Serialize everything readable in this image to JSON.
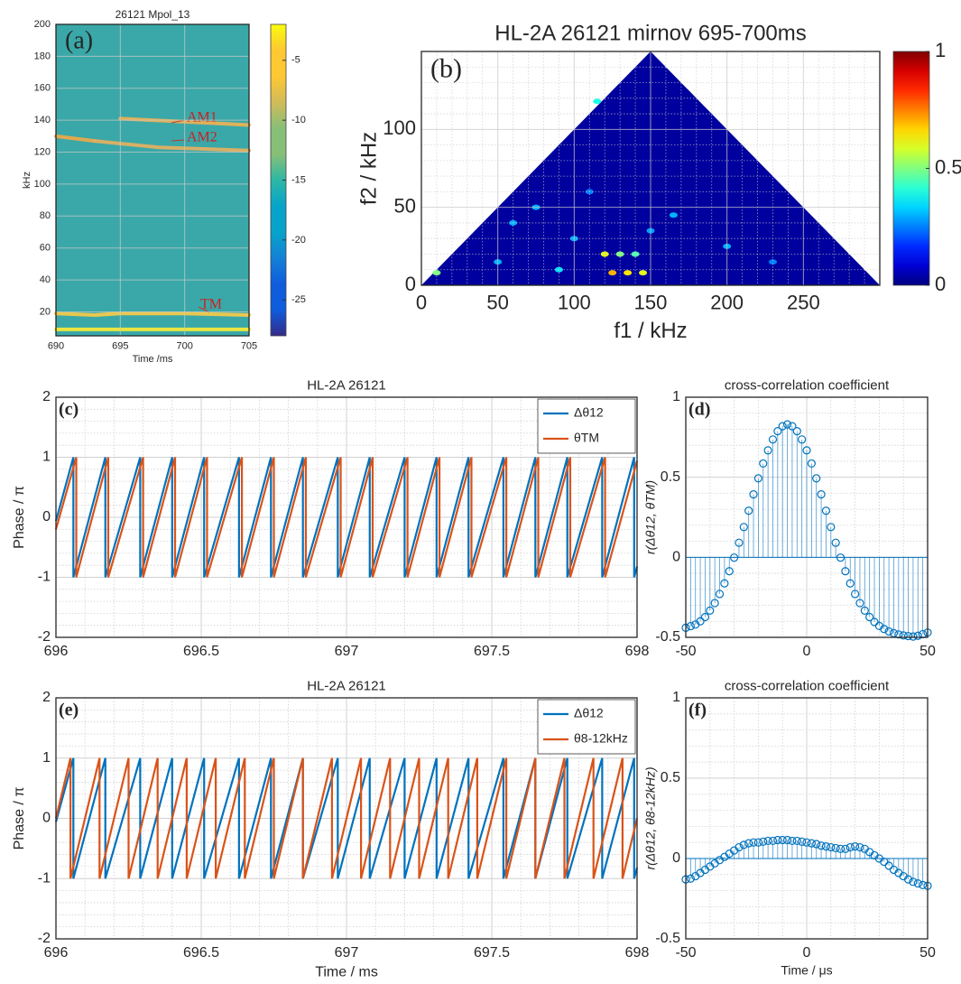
{
  "chart_data": [
    {
      "type": "spectrogram",
      "title": "26121 Mpol_13",
      "panel_label": "(a)",
      "xlabel": "Time /ms",
      "ylabel": "kHz",
      "xlim": [
        690,
        705
      ],
      "xticks": [
        690,
        695,
        700,
        705
      ],
      "ylim": [
        5,
        200
      ],
      "yticks": [
        20,
        40,
        60,
        80,
        100,
        120,
        140,
        160,
        180,
        200
      ],
      "grid": true,
      "background": "#3aa8a8",
      "series": [
        {
          "x": [
            690,
            705
          ],
          "values": [
            9,
            9
          ],
          "color": "#f4e83a"
        },
        {
          "x": [
            690,
            693,
            695,
            700,
            705
          ],
          "values": [
            19,
            18,
            19,
            19,
            18
          ],
          "color": "#f2c94a"
        },
        {
          "x": [
            690,
            693
          ],
          "values": [
            130,
            127
          ],
          "color": "#e9a94a"
        },
        {
          "x": [
            695,
            700,
            705
          ],
          "values": [
            141,
            139,
            137
          ],
          "color": "#e8b155"
        },
        {
          "x": [
            693,
            698,
            705
          ],
          "values": [
            127,
            123,
            121
          ],
          "color": "#dfb062"
        }
      ],
      "annotations": [
        "AM1",
        "AM2",
        "TM"
      ],
      "colorbar": {
        "lim": [
          -28,
          -2
        ],
        "ticks": [
          -25,
          -20,
          -15,
          -10,
          -5
        ],
        "colormap": "parula"
      }
    },
    {
      "type": "bicoherence",
      "title": "HL-2A 26121 mirnov 695-700ms",
      "panel_label": "(b)",
      "xlabel": "f1 / kHz",
      "ylabel": "f2 / kHz",
      "xlim": [
        0,
        300
      ],
      "xticks": [
        0,
        50,
        100,
        150,
        200,
        250
      ],
      "ylim": [
        0,
        150
      ],
      "yticks": [
        0,
        50,
        100
      ],
      "grid": true,
      "minor_grid": 5,
      "x": [
        10,
        120,
        125,
        135,
        145,
        130,
        140,
        115,
        60,
        75,
        100,
        165,
        200,
        50,
        90,
        230,
        110,
        150
      ],
      "y": [
        8,
        20,
        8,
        8,
        8,
        20,
        20,
        118,
        40,
        50,
        30,
        45,
        25,
        15,
        10,
        15,
        60,
        35
      ],
      "values": [
        0.5,
        0.6,
        0.7,
        0.65,
        0.6,
        0.5,
        0.45,
        0.4,
        0.3,
        0.3,
        0.3,
        0.3,
        0.3,
        0.3,
        0.35,
        0.25,
        0.25,
        0.28
      ],
      "colorbar": {
        "lim": [
          0,
          1
        ],
        "ticks": [
          0,
          0.5,
          1
        ],
        "colormap": "jet"
      }
    },
    {
      "type": "line",
      "title": "HL-2A 26121",
      "panel_label": "(c)",
      "ylabel": "Phase / π",
      "xlim": [
        696,
        698
      ],
      "xticks": [
        696,
        696.5,
        697,
        697.5,
        698
      ],
      "ylim": [
        -2,
        2
      ],
      "yticks": [
        -2,
        -1,
        0,
        1,
        2
      ],
      "grid": true,
      "minor_grid": 5,
      "legend": "upper right",
      "series": [
        {
          "name": "Δθ12",
          "color": "#0072bd",
          "x": [
            696,
            696.06,
            696.06,
            696.17,
            696.17,
            696.29,
            696.29,
            696.4,
            696.4,
            696.51,
            696.51,
            696.63,
            696.63,
            696.74,
            696.74,
            696.85,
            696.85,
            696.97,
            696.97,
            697.08,
            697.08,
            697.2,
            697.2,
            697.31,
            697.31,
            697.42,
            697.42,
            697.54,
            697.54,
            697.65,
            697.65,
            697.76,
            697.76,
            697.88,
            697.88,
            697.99,
            697.99,
            698
          ],
          "values": [
            -0.06,
            1,
            -1,
            1,
            -1,
            1,
            -1,
            1,
            -1,
            1,
            -1,
            1,
            -1,
            1,
            -1,
            1,
            -1,
            1,
            -1,
            1,
            -1,
            1,
            -1,
            1,
            -1,
            1,
            -1,
            1,
            -1,
            1,
            -1,
            1,
            -1,
            1,
            -1,
            1,
            -1,
            -0.82
          ]
        },
        {
          "name": "θTM",
          "color": "#d95319",
          "x": [
            696,
            696.07,
            696.07,
            696.18,
            696.18,
            696.3,
            696.3,
            696.41,
            696.41,
            696.52,
            696.52,
            696.64,
            696.64,
            696.75,
            696.75,
            696.86,
            696.86,
            696.98,
            696.98,
            697.09,
            697.09,
            697.21,
            697.21,
            697.32,
            697.32,
            697.43,
            697.43,
            697.55,
            697.55,
            697.66,
            697.66,
            697.77,
            697.77,
            697.89,
            697.89,
            698
          ],
          "values": [
            -0.2,
            1,
            -1,
            1,
            -1,
            1,
            -1,
            1,
            -1,
            1,
            -1,
            1,
            -1,
            1,
            -1,
            1,
            -1,
            1,
            -1,
            1,
            -1,
            1,
            -1,
            1,
            -1,
            1,
            -1,
            1,
            -1,
            1,
            -1,
            1,
            -1,
            1,
            -1,
            0.94
          ]
        }
      ]
    },
    {
      "type": "stem",
      "title": "cross-correlation coefficient",
      "panel_label": "(d)",
      "ylabel": "r(Δθ12, θTM)",
      "xlim": [
        -50,
        50
      ],
      "xticks": [
        -50,
        0,
        50
      ],
      "ylim": [
        -0.5,
        1
      ],
      "yticks": [
        -0.5,
        0,
        0.5,
        1
      ],
      "grid": true,
      "minor_grid": 5,
      "color": "#0072bd",
      "x": [
        -50,
        -48,
        -46,
        -44,
        -42,
        -40,
        -38,
        -36,
        -34,
        -32,
        -30,
        -28,
        -26,
        -24,
        -22,
        -20,
        -18,
        -16,
        -14,
        -12,
        -10,
        -8,
        -6,
        -4,
        -2,
        0,
        2,
        4,
        6,
        8,
        10,
        12,
        14,
        16,
        18,
        20,
        22,
        24,
        26,
        28,
        30,
        32,
        34,
        36,
        38,
        40,
        42,
        44,
        46,
        48,
        50
      ],
      "values": [
        -0.44,
        -0.43,
        -0.42,
        -0.4,
        -0.373,
        -0.333,
        -0.286,
        -0.229,
        -0.163,
        -0.087,
        -0.002,
        0.091,
        0.189,
        0.291,
        0.393,
        0.493,
        0.586,
        0.668,
        0.736,
        0.788,
        0.819,
        0.83,
        0.819,
        0.788,
        0.736,
        0.668,
        0.586,
        0.493,
        0.393,
        0.291,
        0.189,
        0.091,
        -0.002,
        -0.087,
        -0.163,
        -0.229,
        -0.286,
        -0.333,
        -0.373,
        -0.404,
        -0.429,
        -0.448,
        -0.463,
        -0.474,
        -0.482,
        -0.488,
        -0.492,
        -0.495,
        -0.49,
        -0.48,
        -0.47
      ]
    },
    {
      "type": "line",
      "title": "HL-2A 26121",
      "panel_label": "(e)",
      "xlabel": "Time / ms",
      "ylabel": "Phase / π",
      "xlim": [
        696,
        698
      ],
      "xticks": [
        696,
        696.5,
        697,
        697.5,
        698
      ],
      "ylim": [
        -2,
        2
      ],
      "yticks": [
        -2,
        -1,
        0,
        1,
        2
      ],
      "grid": true,
      "minor_grid": 5,
      "legend": "upper right",
      "series": [
        {
          "name": "Δθ12",
          "color": "#0072bd",
          "x": [
            696,
            696.06,
            696.06,
            696.17,
            696.17,
            696.29,
            696.29,
            696.4,
            696.4,
            696.51,
            696.51,
            696.63,
            696.63,
            696.74,
            696.74,
            696.85,
            696.85,
            696.97,
            696.97,
            697.08,
            697.08,
            697.2,
            697.2,
            697.31,
            697.31,
            697.42,
            697.42,
            697.54,
            697.54,
            697.65,
            697.65,
            697.76,
            697.76,
            697.88,
            697.88,
            697.99,
            697.99,
            698
          ],
          "values": [
            -0.06,
            1,
            -1,
            1,
            -1,
            1,
            -1,
            1,
            -1,
            1,
            -1,
            1,
            -1,
            1,
            -1,
            1,
            -1,
            1,
            -1,
            1,
            -1,
            1,
            -1,
            1,
            -1,
            1,
            -1,
            1,
            -1,
            1,
            -1,
            1,
            -1,
            1,
            -1,
            1,
            -1,
            -0.82
          ]
        },
        {
          "name": "θ8-12kHz",
          "color": "#d95319",
          "x": [
            696,
            696.05,
            696.05,
            696.15,
            696.15,
            696.25,
            696.25,
            696.35,
            696.35,
            696.45,
            696.45,
            696.55,
            696.55,
            696.65,
            696.65,
            696.75,
            696.75,
            696.85,
            696.85,
            696.95,
            696.95,
            697.05,
            697.05,
            697.15,
            697.15,
            697.25,
            697.25,
            697.35,
            697.35,
            697.45,
            697.45,
            697.55,
            697.55,
            697.65,
            697.65,
            697.75,
            697.75,
            697.85,
            697.85,
            697.95,
            697.95,
            698
          ],
          "values": [
            0,
            1,
            -1,
            1,
            -1,
            1,
            -1,
            1,
            -1,
            1,
            -1,
            1,
            -1,
            1,
            -1,
            1,
            -1,
            1,
            -1,
            1,
            -1,
            1,
            -1,
            1,
            -1,
            1,
            -1,
            1,
            -1,
            1,
            -1,
            1,
            -1,
            1,
            -1,
            1,
            -1,
            1,
            -1,
            1,
            -1,
            0
          ]
        }
      ]
    },
    {
      "type": "stem",
      "title": "cross-correlation coefficient",
      "panel_label": "(f)",
      "xlabel": "Time / μs",
      "ylabel": "r(Δθ12, θ8-12kHz)",
      "xlim": [
        -50,
        50
      ],
      "xticks": [
        -50,
        0,
        50
      ],
      "ylim": [
        -0.5,
        1
      ],
      "yticks": [
        -0.5,
        0,
        0.5,
        1
      ],
      "grid": true,
      "minor_grid": 5,
      "color": "#0072bd",
      "x": [
        -50,
        -48,
        -46,
        -44,
        -42,
        -40,
        -38,
        -36,
        -34,
        -32,
        -30,
        -28,
        -26,
        -24,
        -22,
        -20,
        -18,
        -16,
        -14,
        -12,
        -10,
        -8,
        -6,
        -4,
        -2,
        0,
        2,
        4,
        6,
        8,
        10,
        12,
        14,
        16,
        18,
        20,
        22,
        24,
        26,
        28,
        30,
        32,
        34,
        36,
        38,
        40,
        42,
        44,
        46,
        48,
        50
      ],
      "values": [
        -0.13,
        -0.125,
        -0.11,
        -0.09,
        -0.07,
        -0.05,
        -0.03,
        -0.01,
        0.01,
        0.03,
        0.05,
        0.07,
        0.085,
        0.095,
        0.1,
        0.1,
        0.105,
        0.11,
        0.11,
        0.115,
        0.115,
        0.115,
        0.11,
        0.11,
        0.105,
        0.1,
        0.095,
        0.09,
        0.08,
        0.075,
        0.07,
        0.065,
        0.06,
        0.06,
        0.07,
        0.075,
        0.07,
        0.06,
        0.04,
        0.02,
        0,
        -0.02,
        -0.045,
        -0.07,
        -0.09,
        -0.11,
        -0.13,
        -0.145,
        -0.155,
        -0.165,
        -0.17
      ]
    }
  ]
}
